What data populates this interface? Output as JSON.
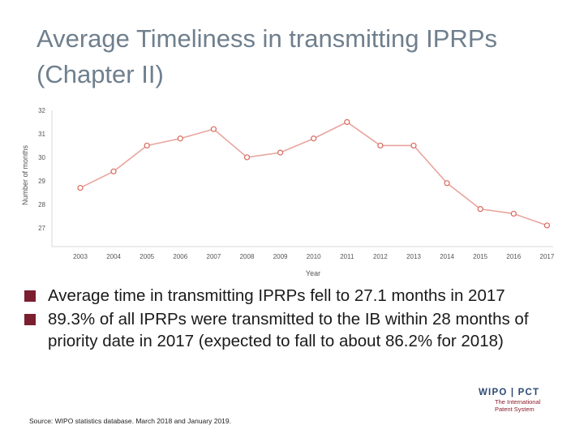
{
  "title": "Average Timeliness in transmitting IPRPs (Chapter II)",
  "chart_data": {
    "type": "line",
    "x": [
      "2003",
      "2004",
      "2005",
      "2006",
      "2007",
      "2008",
      "2009",
      "2010",
      "2011",
      "2012",
      "2013",
      "2014",
      "2015",
      "2016",
      "2017"
    ],
    "series": [
      {
        "values": [
          28.7,
          29.4,
          30.5,
          30.8,
          31.2,
          30.0,
          30.2,
          30.8,
          31.5,
          30.5,
          30.5,
          28.9,
          27.8,
          27.6,
          27.1
        ]
      }
    ],
    "xlabel": "Year",
    "ylabel": "Number of months",
    "ylim": [
      26.2,
      32
    ],
    "yticks": [
      27,
      28,
      29,
      30,
      31,
      32
    ],
    "grid": false,
    "colors": {
      "line": "#e8a59e",
      "marker_fill": "#ffffff",
      "marker_stroke": "#d9685c",
      "axis": "#d9d9d9"
    }
  },
  "bullets": [
    "Average time in transmitting IPRPs fell to 27.1 months in 2017",
    "89.3% of all IPRPs were transmitted to the IB within 28 months of priority date in 2017 (expected to fall to about 86.2% for 2018)"
  ],
  "source": "Source: WIPO statistics database. March 2018 and January 2019.",
  "logo": {
    "top": "WIPO | PCT",
    "line1": "The International",
    "line2": "Patent System"
  }
}
